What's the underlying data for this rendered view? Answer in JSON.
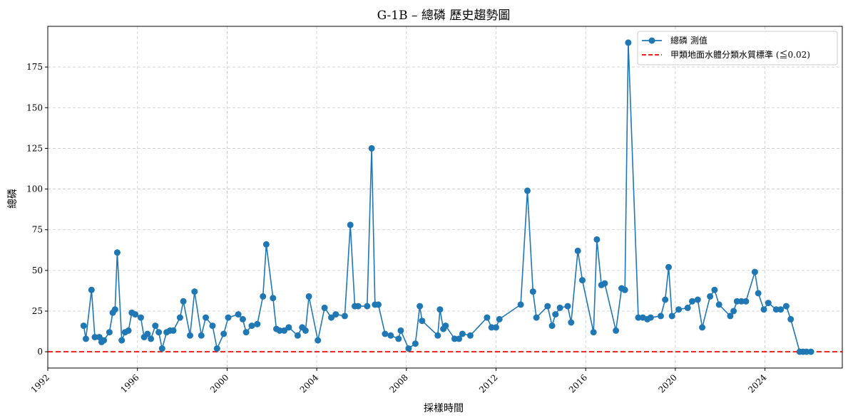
{
  "chart_data": {
    "type": "line",
    "title": "G-1B – 總磷 歷史趨勢圖",
    "xlabel": "採樣時間",
    "ylabel": "總磷",
    "xlim": [
      1992.0,
      2027.45
    ],
    "ylim": [
      -10,
      200
    ],
    "x_ticks": [
      1992,
      1996,
      2000,
      2004,
      2008,
      2012,
      2016,
      2020,
      2024
    ],
    "x_tick_labels": [
      "1992",
      "1996",
      "2000",
      "2004",
      "2008",
      "2012",
      "2016",
      "2020",
      "2024"
    ],
    "y_ticks": [
      0,
      25,
      50,
      75,
      100,
      125,
      150,
      175
    ],
    "y_tick_labels": [
      "0",
      "25",
      "50",
      "75",
      "100",
      "125",
      "150",
      "175"
    ],
    "grid": true,
    "legend_position": "top-right",
    "colors": {
      "series": "#1f77b4",
      "reference": "#ff0000"
    },
    "series": [
      {
        "name": "總磷 測值",
        "marker": "circle",
        "x": [
          1993.6,
          1993.7,
          1993.95,
          1994.1,
          1994.3,
          1994.4,
          1994.5,
          1994.75,
          1994.9,
          1995.0,
          1995.1,
          1995.3,
          1995.45,
          1995.6,
          1995.75,
          1995.9,
          1996.15,
          1996.3,
          1996.45,
          1996.6,
          1996.8,
          1996.95,
          1997.1,
          1997.3,
          1997.45,
          1997.6,
          1997.9,
          1998.05,
          1998.35,
          1998.55,
          1998.85,
          1999.05,
          1999.35,
          1999.55,
          1999.85,
          2000.05,
          2000.5,
          2000.7,
          2000.85,
          2001.1,
          2001.35,
          2001.6,
          2001.75,
          2002.05,
          2002.2,
          2002.35,
          2002.55,
          2002.75,
          2003.15,
          2003.35,
          2003.5,
          2003.65,
          2004.05,
          2004.35,
          2004.65,
          2004.85,
          2005.25,
          2005.5,
          2005.7,
          2005.85,
          2006.25,
          2006.45,
          2006.6,
          2006.75,
          2007.05,
          2007.3,
          2007.65,
          2007.75,
          2008.1,
          2008.4,
          2008.6,
          2008.7,
          2009.4,
          2009.5,
          2009.65,
          2009.75,
          2010.15,
          2010.35,
          2010.5,
          2010.85,
          2011.6,
          2011.8,
          2012.0,
          2012.15,
          2013.1,
          2013.4,
          2013.65,
          2013.8,
          2014.3,
          2014.5,
          2014.65,
          2014.85,
          2015.2,
          2015.35,
          2015.65,
          2015.85,
          2016.35,
          2016.5,
          2016.7,
          2016.85,
          2017.35,
          2017.6,
          2017.75,
          2017.9,
          2018.35,
          2018.55,
          2018.75,
          2018.9,
          2019.35,
          2019.55,
          2019.7,
          2019.85,
          2020.15,
          2020.55,
          2020.75,
          2021.0,
          2021.2,
          2021.55,
          2021.75,
          2021.95,
          2022.45,
          2022.6,
          2022.75,
          2022.95,
          2023.15,
          2023.55,
          2023.7,
          2023.95,
          2024.15,
          2024.5,
          2024.7,
          2024.95,
          2025.15,
          2025.55,
          2025.7,
          2025.85,
          2026.05
        ],
        "y": [
          16,
          8,
          38,
          9,
          9,
          6,
          7,
          12,
          24,
          26,
          61,
          7,
          12,
          13,
          24,
          23,
          21,
          9,
          11,
          8,
          16,
          12,
          2,
          12,
          13,
          13,
          21,
          31,
          10,
          37,
          10,
          21,
          16,
          2,
          11,
          21,
          23,
          20,
          12,
          16,
          17,
          34,
          66,
          33,
          14,
          13,
          13,
          15,
          10,
          15,
          13,
          34,
          7,
          27,
          21,
          23,
          22,
          78,
          28,
          28,
          28,
          125,
          29,
          29,
          11,
          10,
          8,
          13,
          2,
          5,
          28,
          19,
          10,
          26,
          14,
          16,
          8,
          8,
          11,
          10,
          21,
          15,
          15,
          20,
          29,
          99,
          37,
          21,
          28,
          16,
          23,
          27,
          28,
          18,
          62,
          44,
          12,
          69,
          41,
          42,
          13,
          39,
          38,
          190,
          21,
          21,
          20,
          21,
          22,
          32,
          52,
          22,
          26,
          27,
          31,
          32,
          15,
          34,
          38,
          29,
          22,
          25,
          31,
          31,
          31,
          49,
          36,
          26,
          30,
          26,
          26,
          28,
          20,
          0,
          0,
          0,
          0
        ]
      },
      {
        "name": "甲類地面水體分類水質標準 (≦0.02)",
        "style": "dashed",
        "y_constant": 0.02
      }
    ]
  }
}
